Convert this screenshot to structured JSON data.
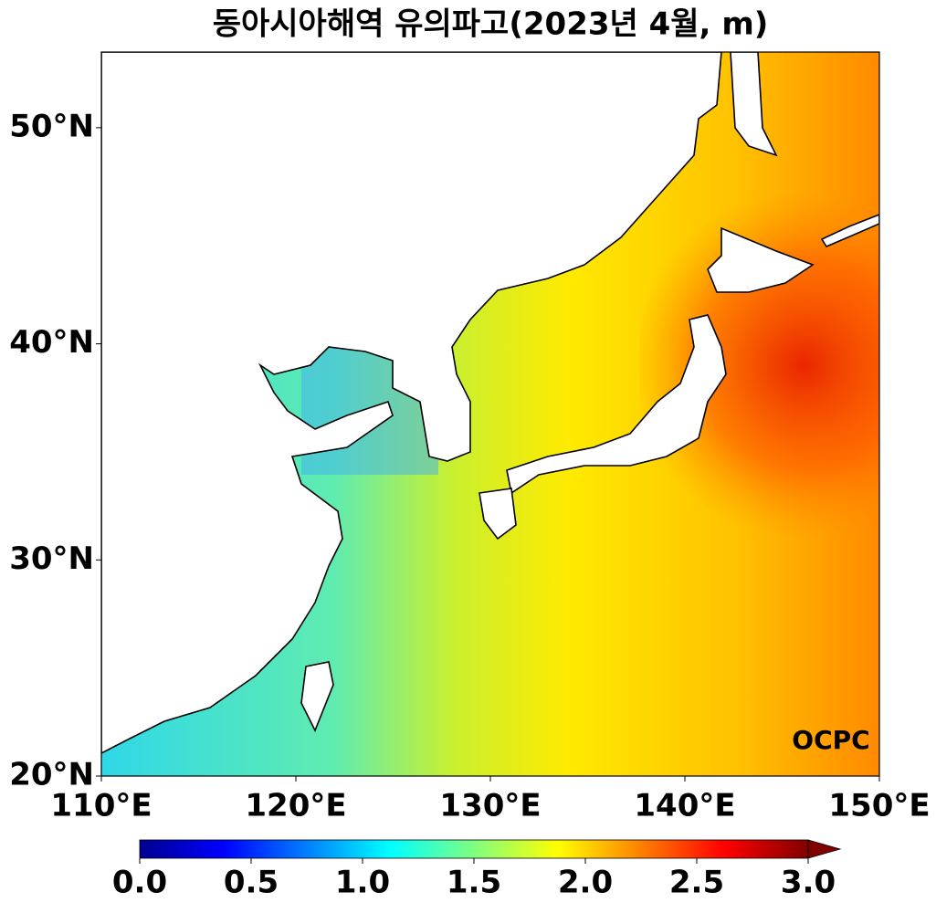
{
  "title": "동아시아해역 유의파고(2023년 4월, m)",
  "map": {
    "xlim": [
      110,
      150
    ],
    "ylim": [
      20,
      53.5
    ],
    "xticks": [
      {
        "value": 110,
        "label": "110°E"
      },
      {
        "value": 120,
        "label": "120°E"
      },
      {
        "value": 130,
        "label": "130°E"
      },
      {
        "value": 140,
        "label": "140°E"
      },
      {
        "value": 150,
        "label": "150°E"
      }
    ],
    "yticks": [
      {
        "value": 20,
        "label": "20°N"
      },
      {
        "value": 30,
        "label": "30°N"
      },
      {
        "value": 40,
        "label": "40°N"
      },
      {
        "value": 50,
        "label": "50°N"
      }
    ]
  },
  "colorbar": {
    "range": [
      0,
      3
    ],
    "ticks": [
      {
        "value": 0,
        "label": "0.0"
      },
      {
        "value": 0.5,
        "label": "0.5"
      },
      {
        "value": 1,
        "label": "1.0"
      },
      {
        "value": 1.5,
        "label": "1.5"
      },
      {
        "value": 2,
        "label": "2.0"
      },
      {
        "value": 2.5,
        "label": "2.5"
      },
      {
        "value": 3,
        "label": "3.0"
      }
    ]
  },
  "logo": "OCPC"
}
